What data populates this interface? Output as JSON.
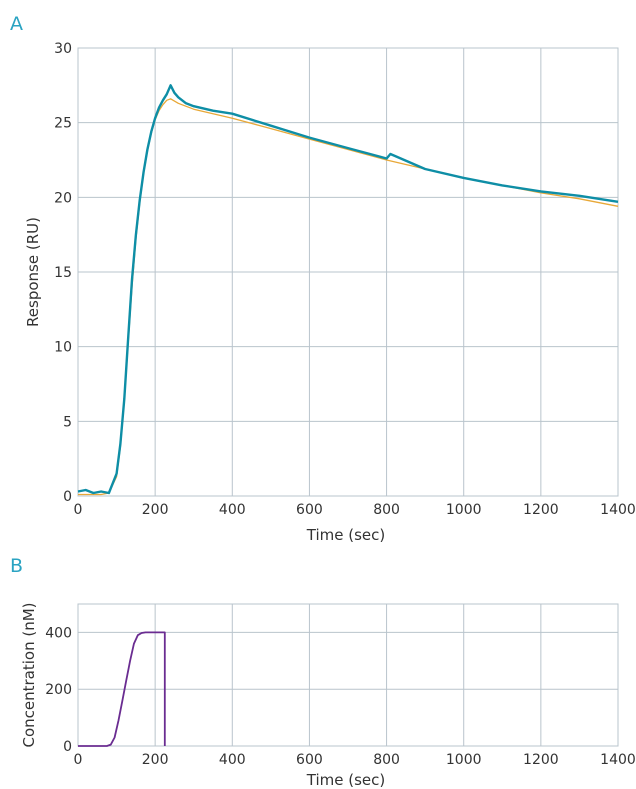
{
  "chart_data": [
    {
      "panel_label": "A",
      "type": "line",
      "xlabel": "Time (sec)",
      "ylabel": "Response (RU)",
      "xlim": [
        0,
        1400
      ],
      "ylim": [
        0,
        30
      ],
      "xticks": [
        0,
        200,
        400,
        600,
        800,
        1000,
        1200,
        1400
      ],
      "yticks": [
        0,
        5,
        10,
        15,
        20,
        25,
        30
      ],
      "grid": true,
      "colors": {
        "measured": "#0e8ea6",
        "fit": "#e8a838"
      },
      "series": [
        {
          "key": "measured",
          "x": [
            0,
            20,
            40,
            60,
            80,
            100,
            110,
            120,
            130,
            140,
            150,
            160,
            170,
            180,
            190,
            200,
            210,
            220,
            230,
            240,
            250,
            260,
            280,
            300,
            350,
            400,
            500,
            600,
            700,
            800,
            810,
            900,
            1000,
            1100,
            1200,
            1300,
            1400
          ],
          "y": [
            0.3,
            0.4,
            0.2,
            0.3,
            0.2,
            1.5,
            3.5,
            6.5,
            10.5,
            14.5,
            17.5,
            19.8,
            21.7,
            23.2,
            24.4,
            25.3,
            26.0,
            26.5,
            26.9,
            27.5,
            27.0,
            26.7,
            26.3,
            26.1,
            25.8,
            25.6,
            24.8,
            24.0,
            23.3,
            22.6,
            22.9,
            21.9,
            21.3,
            20.8,
            20.4,
            20.1,
            19.7
          ]
        },
        {
          "key": "fit",
          "x": [
            0,
            60,
            80,
            100,
            110,
            120,
            130,
            140,
            150,
            160,
            170,
            180,
            190,
            200,
            210,
            220,
            230,
            240,
            260,
            300,
            400,
            500,
            600,
            700,
            800,
            900,
            1000,
            1100,
            1200,
            1300,
            1400
          ],
          "y": [
            0.1,
            0.1,
            0.2,
            1.3,
            3.3,
            6.4,
            10.2,
            14.0,
            17.2,
            19.6,
            21.6,
            23.1,
            24.3,
            25.2,
            25.8,
            26.2,
            26.5,
            26.6,
            26.3,
            25.9,
            25.3,
            24.6,
            23.9,
            23.2,
            22.5,
            21.9,
            21.3,
            20.8,
            20.3,
            19.9,
            19.4
          ]
        }
      ]
    },
    {
      "panel_label": "B",
      "type": "line",
      "xlabel": "Time (sec)",
      "ylabel": "Concentration (nM)",
      "xlim": [
        0,
        1400
      ],
      "ylim": [
        0,
        500
      ],
      "xticks": [
        0,
        200,
        400,
        600,
        800,
        1000,
        1200,
        1400
      ],
      "yticks": [
        0,
        200,
        400
      ],
      "grid": true,
      "colors": {
        "concentration": "#6a2c91"
      },
      "series": [
        {
          "key": "concentration",
          "x": [
            0,
            75,
            85,
            95,
            105,
            115,
            125,
            135,
            145,
            155,
            165,
            175,
            200,
            225,
            225
          ],
          "y": [
            0,
            0,
            5,
            30,
            90,
            160,
            230,
            300,
            360,
            390,
            398,
            400,
            400,
            400,
            0
          ]
        }
      ]
    }
  ]
}
